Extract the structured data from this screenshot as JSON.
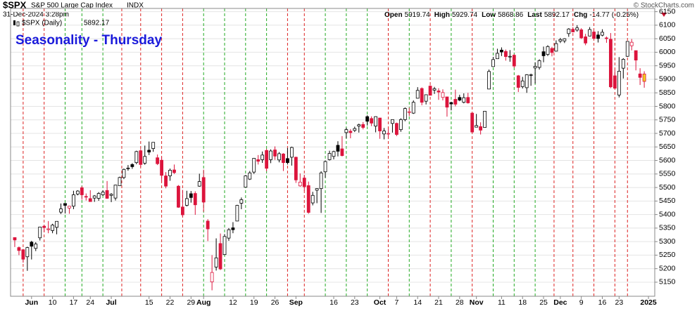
{
  "chart_data": {
    "type": "candlestick",
    "symbol": "$SPX",
    "name": "S&P 500 Large Cap Index",
    "exchange": "INDX",
    "date": "31-Dec-2024 3:28pm",
    "quote": [
      {
        "label": "Open",
        "value": 5919.74
      },
      {
        "label": "High",
        "value": 5929.74
      },
      {
        "label": "Low",
        "value": 5868.86
      },
      {
        "label": "Last",
        "value": 5892.17
      },
      {
        "label": "Chg",
        "value": -14.77
      }
    ],
    "change_pct": {
      "value": -0.25,
      "label": "(-0.25%)"
    },
    "copyright": "© StockCharts.com",
    "legend_label": "$SPX (Daily)",
    "title": "Seasonality - Thursday",
    "up_color": "#000000",
    "down_color": "#dc143c",
    "last_color": "#f2d21b",
    "grid": true,
    "ohlc": {
      "open": [
        5315,
        5278,
        5270,
        5244,
        5298,
        5275,
        5314,
        5357,
        5344,
        5341,
        5353,
        5409,
        5441,
        5424,
        5431,
        5476,
        5499,
        5467,
        5459,
        5461,
        5460,
        5473,
        5489,
        5471,
        5461,
        5507,
        5537,
        5572,
        5585,
        5592,
        5636,
        5590,
        5638,
        5644,
        5610,
        5601,
        5543,
        5543,
        5565,
        5505,
        5428,
        5434,
        5477,
        5478,
        5505,
        5537,
        5376,
        5151,
        5206,
        5293,
        5252,
        5313,
        5351,
        5376,
        5442,
        5501,
        5531,
        5557,
        5603,
        5603,
        5637,
        5603,
        5639,
        5602,
        5624,
        5607,
        5612,
        5612,
        5506,
        5535,
        5507,
        5443,
        5490,
        5496,
        5558,
        5603,
        5615,
        5656,
        5643,
        5703,
        5708,
        5711,
        5727,
        5733,
        5762,
        5755,
        5727,
        5757,
        5698,
        5698,
        5737,
        5737,
        5714,
        5751,
        5778,
        5775,
        5830,
        5866,
        5819,
        5875,
        5860,
        5857,
        5833,
        5835,
        5814,
        5826,
        5833,
        5815,
        5833,
        5775,
        5723,
        5725,
        5722,
        5864,
        5947,
        5976,
        6008,
        6003,
        5985,
        5989,
        5913,
        5873,
        5869,
        5917,
        5942,
        5944,
        6002,
        5992,
        6014,
        6004,
        6041,
        6042,
        6069,
        6085,
        6082,
        6083,
        6057,
        6060,
        6075,
        6064,
        6063,
        6053,
        6048,
        5913,
        5842,
        5941,
        5985,
        6024,
        6006,
        5920,
        5919.74
      ],
      "high": [
        5315,
        5282,
        5273,
        5281,
        5303,
        5298,
        5355,
        5362,
        5376,
        5366,
        5375,
        5441,
        5441,
        5432,
        5488,
        5490,
        5505,
        5478,
        5490,
        5472,
        5483,
        5490,
        5524,
        5479,
        5510,
        5540,
        5570,
        5583,
        5590,
        5636,
        5642,
        5655,
        5670,
        5667,
        5622,
        5614,
        5557,
        5570,
        5585,
        5509,
        5491,
        5488,
        5487,
        5486,
        5551,
        5566,
        5383,
        5250,
        5312,
        5330,
        5328,
        5350,
        5372,
        5436,
        5463,
        5546,
        5561,
        5608,
        5620,
        5633,
        5643,
        5641,
        5652,
        5631,
        5627,
        5646,
        5651,
        5614,
        5552,
        5547,
        5522,
        5484,
        5497,
        5560,
        5600,
        5636,
        5636,
        5671,
        5690,
        5721,
        5716,
        5725,
        5736,
        5742,
        5767,
        5763,
        5763,
        5757,
        5720,
        5718,
        5752,
        5740,
        5756,
        5796,
        5795,
        5822,
        5871,
        5870,
        5843,
        5878,
        5872,
        5867,
        5863,
        5835,
        5817,
        5862,
        5843,
        5848,
        5850,
        5775,
        5772,
        5741,
        5783,
        5936,
        5983,
        6013,
        6018,
        6010,
        6008,
        5993,
        5916,
        5909,
        5919,
        5921,
        5963,
        5974,
        6021,
        6026,
        6020,
        6044,
        6053,
        6052,
        6089,
        6093,
        6100,
        6089,
        6068,
        6093,
        6079,
        6078,
        6085,
        6058,
        6071,
        5935,
        5982,
        5978,
        6040,
        6049,
        6006,
        5941,
        5929.74
      ],
      "low": [
        5280,
        5250,
        5222,
        5192,
        5234,
        5265,
        5304,
        5335,
        5331,
        5331,
        5327,
        5402,
        5404,
        5403,
        5420,
        5471,
        5455,
        5452,
        5447,
        5447,
        5451,
        5469,
        5458,
        5446,
        5452,
        5507,
        5531,
        5562,
        5569,
        5586,
        5576,
        5584,
        5620,
        5632,
        5583,
        5522,
        5497,
        5525,
        5550,
        5425,
        5390,
        5430,
        5444,
        5399,
        5503,
        5410,
        5302,
        5120,
        5193,
        5195,
        5250,
        5303,
        5331,
        5376,
        5420,
        5501,
        5528,
        5550,
        5585,
        5591,
        5560,
        5590,
        5602,
        5593,
        5561,
        5585,
        5581,
        5517,
        5503,
        5487,
        5403,
        5434,
        5442,
        5406,
        5536,
        5600,
        5604,
        5615,
        5615,
        5682,
        5682,
        5705,
        5703,
        5715,
        5729,
        5727,
        5704,
        5680,
        5678,
        5685,
        5703,
        5690,
        5706,
        5745,
        5764,
        5772,
        5829,
        5804,
        5807,
        5840,
        5846,
        5824,
        5822,
        5762,
        5785,
        5800,
        5819,
        5811,
        5810,
        5703,
        5723,
        5696,
        5722,
        5864,
        5947,
        5976,
        5986,
        5969,
        5965,
        5942,
        5853,
        5866,
        5850,
        5876,
        5884,
        5936,
        5963,
        5986,
        5985,
        6003,
        6034,
        6034,
        6057,
        6074,
        6076,
        6049,
        6026,
        6059,
        6050,
        6036,
        6059,
        6035,
        5867,
        5866,
        5833,
        5903,
        5983,
        6007,
        5933,
        5879,
        5868.86
      ],
      "close": [
        5306,
        5267,
        5235,
        5278,
        5283,
        5291,
        5354,
        5352,
        5347,
        5361,
        5375,
        5421,
        5434,
        5431,
        5473,
        5487,
        5473,
        5465,
        5448,
        5469,
        5478,
        5483,
        5460,
        5475,
        5509,
        5537,
        5567,
        5572,
        5577,
        5633,
        5585,
        5615,
        5631,
        5667,
        5588,
        5545,
        5505,
        5564,
        5555,
        5427,
        5399,
        5459,
        5463,
        5436,
        5522,
        5446,
        5347,
        5186,
        5240,
        5199,
        5319,
        5344,
        5344,
        5434,
        5455,
        5543,
        5554,
        5608,
        5597,
        5620,
        5571,
        5635,
        5616,
        5625,
        5592,
        5592,
        5648,
        5528,
        5520,
        5503,
        5408,
        5471,
        5496,
        5554,
        5596,
        5626,
        5633,
        5634,
        5618,
        5714,
        5703,
        5718,
        5732,
        5722,
        5745,
        5738,
        5762,
        5709,
        5709,
        5700,
        5751,
        5696,
        5751,
        5792,
        5780,
        5815,
        5859,
        5815,
        5843,
        5841,
        5865,
        5853,
        5851,
        5797,
        5809,
        5808,
        5823,
        5832,
        5813,
        5705,
        5729,
        5712,
        5782,
        5929,
        5973,
        5996,
        6001,
        5984,
        5985,
        5949,
        5870,
        5894,
        5917,
        5917,
        5948,
        5969,
        5987,
        6021,
        5999,
        6032,
        6047,
        6050,
        6086,
        6075,
        6090,
        6053,
        6034,
        6084,
        6051,
        6051,
        6074,
        6051,
        5872,
        5867,
        5930,
        5974,
        6040,
        6037,
        5971,
        5907,
        5892.17
      ]
    },
    "xlim": [
      -1,
      152.5
    ],
    "xticks": [
      {
        "value": 4,
        "label": "Jun"
      },
      {
        "value": 9,
        "label": "10"
      },
      {
        "value": 14,
        "label": "17"
      },
      {
        "value": 18,
        "label": "24"
      },
      {
        "value": 23,
        "label": "Jul"
      },
      {
        "value": 32,
        "label": "15"
      },
      {
        "value": 37,
        "label": "22"
      },
      {
        "value": 42,
        "label": "29"
      },
      {
        "value": 45,
        "label": "Aug"
      },
      {
        "value": 52,
        "label": "12"
      },
      {
        "value": 57,
        "label": "19"
      },
      {
        "value": 62,
        "label": "26"
      },
      {
        "value": 67,
        "label": "Sep"
      },
      {
        "value": 76,
        "label": "16"
      },
      {
        "value": 81,
        "label": "23"
      },
      {
        "value": 87,
        "label": "Oct"
      },
      {
        "value": 91,
        "label": "7"
      },
      {
        "value": 96,
        "label": "14"
      },
      {
        "value": 101,
        "label": "21"
      },
      {
        "value": 106,
        "label": "28"
      },
      {
        "value": 110,
        "label": "Nov"
      },
      {
        "value": 116,
        "label": "11"
      },
      {
        "value": 121,
        "label": "18"
      },
      {
        "value": 126,
        "label": "25"
      },
      {
        "value": 130,
        "label": "Dec"
      },
      {
        "value": 135,
        "label": "9"
      },
      {
        "value": 140,
        "label": "16"
      },
      {
        "value": 144,
        "label": "23"
      },
      {
        "value": 151,
        "label": "2025"
      }
    ],
    "thursday_lines": {
      "x": [
        2,
        7,
        12,
        16,
        21,
        25.5,
        30,
        35,
        40,
        45,
        50,
        55,
        60,
        65,
        69,
        74,
        79,
        84,
        89,
        94,
        99,
        104,
        109,
        114,
        119,
        124,
        128.5,
        133,
        138,
        143,
        146
      ],
      "colors": [
        "#dd2222",
        "#dd2222",
        "#22aa22",
        "#22aa22",
        "#22aa22",
        "#dd2222",
        "#dd2222",
        "#dd2222",
        "#dd2222",
        "#22aa22",
        "#22aa22",
        "#22aa22",
        "#22aa22",
        "#dd2222",
        "#dd2222",
        "#22aa22",
        "#22aa22",
        "#22aa22",
        "#dd2222",
        "#22aa22",
        "#dd2222",
        "#22aa22",
        "#dd2222",
        "#22aa22",
        "#22aa22",
        "#22aa22",
        "#dd2222",
        "#dd2222",
        "#dd2222",
        "#dd2222",
        "#dd2222"
      ]
    },
    "ylim": [
      5098,
      6162
    ],
    "yticks": [
      5150,
      5200,
      5250,
      5300,
      5350,
      5400,
      5450,
      5500,
      5550,
      5600,
      5650,
      5700,
      5750,
      5800,
      5850,
      5900,
      5950,
      6000,
      6050,
      6100,
      6150
    ]
  }
}
